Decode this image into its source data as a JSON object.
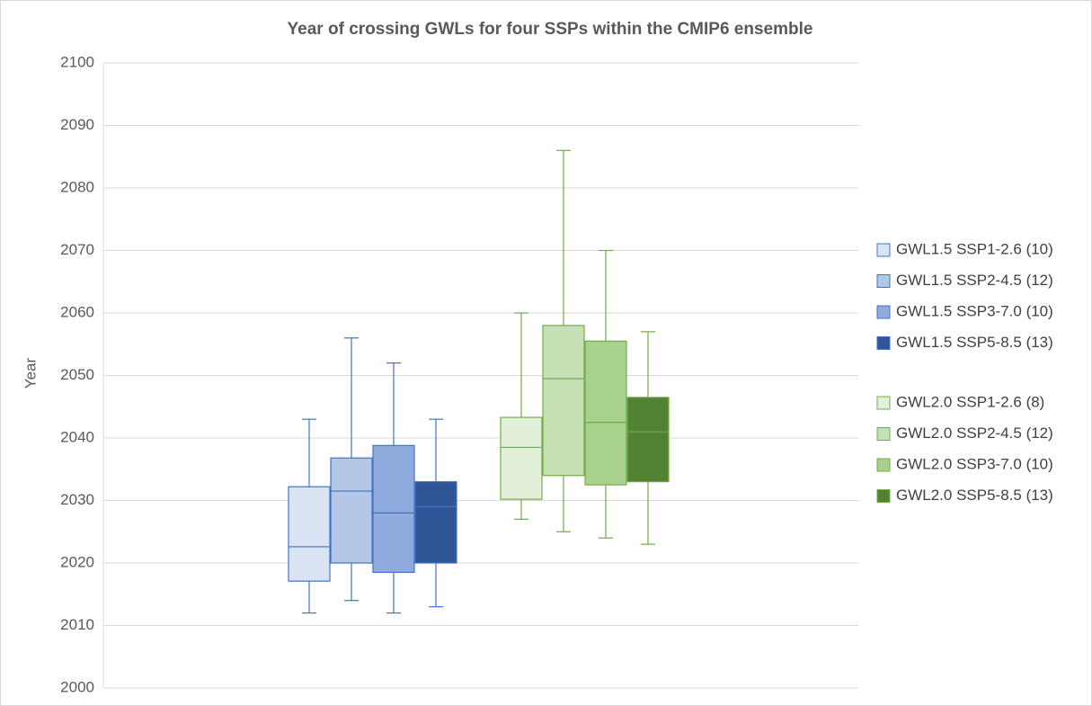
{
  "chart_data": {
    "type": "box",
    "title": "Year of crossing GWLs for four SSPs within the CMIP6 ensemble",
    "y_label": "Year",
    "ylim": [
      2000,
      2100
    ],
    "yticks": [
      2000,
      2010,
      2020,
      2030,
      2040,
      2050,
      2060,
      2070,
      2080,
      2090,
      2100
    ],
    "grid": true,
    "legend": "right",
    "series": [
      {
        "name": "GWL1.5 SSP1-2.6 (10)",
        "color": "#dae3f3",
        "edge": "#4472c4",
        "min": 2012,
        "q1": 2017.1,
        "median": 2022.6,
        "q3": 2032.2,
        "max": 2043
      },
      {
        "name": "GWL1.5 SSP2-4.5 (12)",
        "color": "#b4c7e7",
        "edge": "#4472c4",
        "min": 2014,
        "q1": 2020,
        "median": 2031.5,
        "q3": 2036.8,
        "max": 2056
      },
      {
        "name": "GWL1.5 SSP3-7.0 (10)",
        "color": "#8faadc",
        "edge": "#4472c4",
        "min": 2012,
        "q1": 2018.5,
        "median": 2028,
        "q3": 2038.8,
        "max": 2052
      },
      {
        "name": "GWL1.5 SSP5-8.5 (13)",
        "color": "#2f5597",
        "edge": "#4472c4",
        "min": 2013,
        "q1": 2020,
        "median": 2029,
        "q3": 2033,
        "max": 2043
      },
      {
        "name": "GWL2.0 SSP1-2.6 (8)",
        "color": "#e2f0d9",
        "edge": "#70ad47",
        "min": 2027,
        "q1": 2030.2,
        "median": 2038.5,
        "q3": 2043.3,
        "max": 2060
      },
      {
        "name": "GWL2.0 SSP2-4.5 (12)",
        "color": "#c5e0b4",
        "edge": "#70ad47",
        "min": 2025,
        "q1": 2034,
        "median": 2049.5,
        "q3": 2058,
        "max": 2086
      },
      {
        "name": "GWL2.0 SSP3-7.0 (10)",
        "color": "#a9d18e",
        "edge": "#70ad47",
        "min": 2024,
        "q1": 2032.5,
        "median": 2042.5,
        "q3": 2055.5,
        "max": 2070
      },
      {
        "name": "GWL2.0 SSP5-8.5 (13)",
        "color": "#548235",
        "edge": "#70ad47",
        "min": 2023,
        "q1": 2033,
        "median": 2041,
        "q3": 2046.5,
        "max": 2057
      }
    ]
  }
}
